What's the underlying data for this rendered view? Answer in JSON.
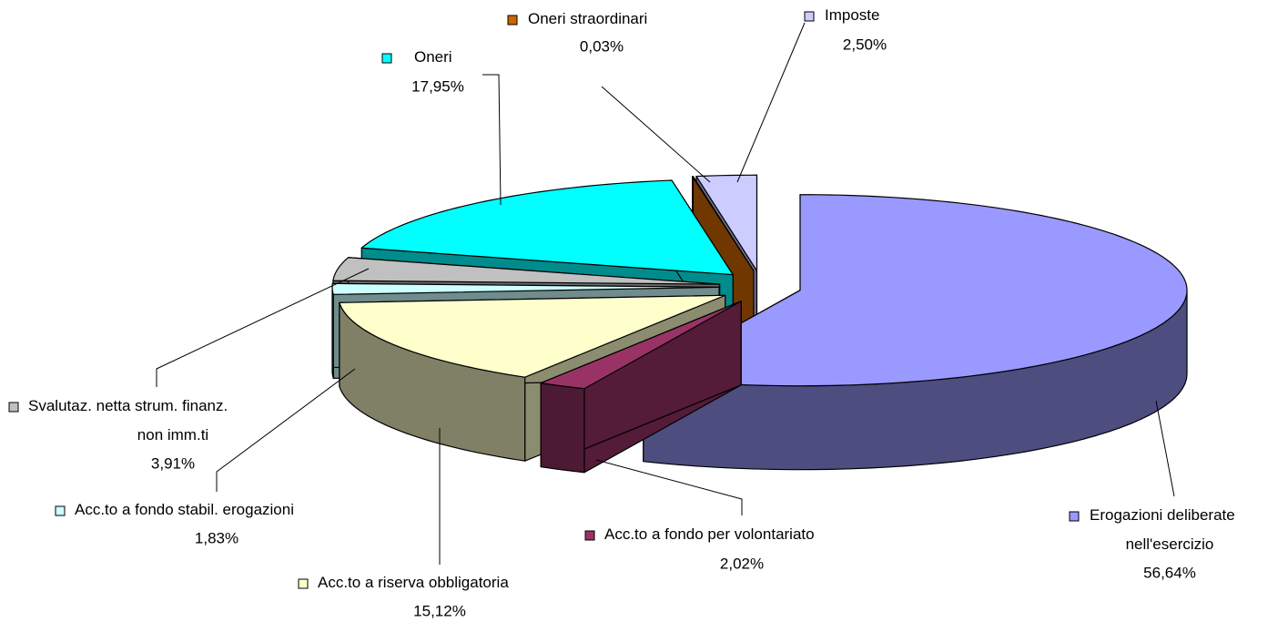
{
  "chart_data": {
    "type": "pie",
    "categories": [
      "Erogazioni deliberate nell'esercizio",
      "Acc.to a fondo per volontariato",
      "Acc.to a riserva obbligatoria",
      "Acc.to a fondo stabil. erogazioni",
      "Svalutaz. netta strum. finanz. non imm.ti",
      "Oneri",
      "Oneri straordinari",
      "Imposte"
    ],
    "values": [
      56.64,
      2.02,
      15.12,
      1.83,
      3.91,
      17.95,
      0.03,
      2.5
    ],
    "value_labels": [
      "56,64%",
      "2,02%",
      "15,12%",
      "1,83%",
      "3,91%",
      "17,95%",
      "0,03%",
      "2,50%"
    ],
    "colors": [
      "#9999ff",
      "#993366",
      "#ffffcc",
      "#ccffff",
      "#c0c0c0",
      "#00ffff",
      "#cc6600",
      "#ccccff"
    ]
  }
}
